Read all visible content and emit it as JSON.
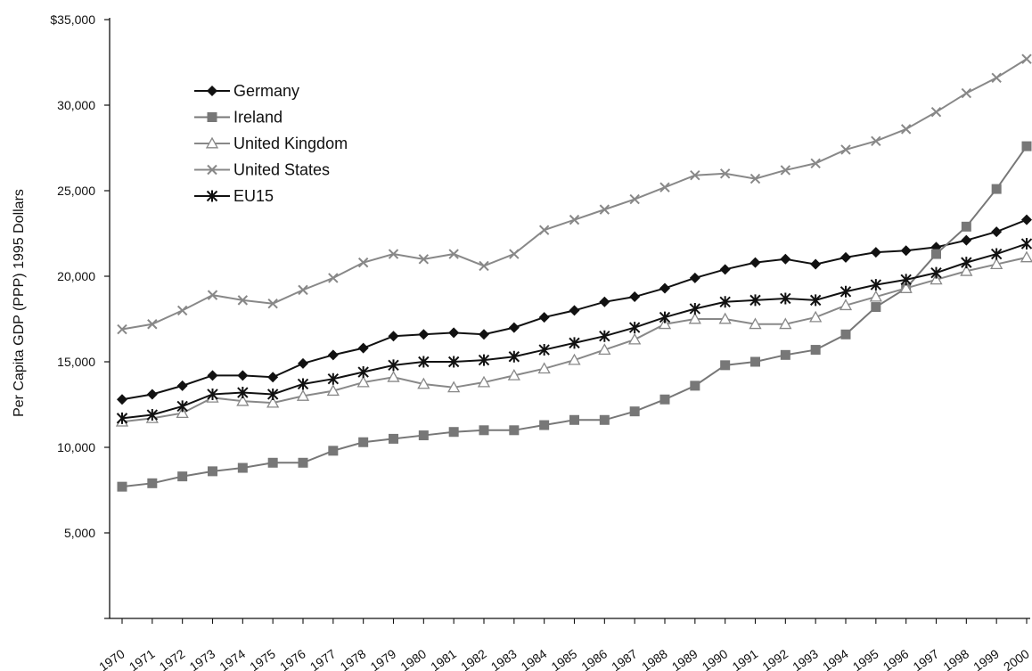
{
  "chart_data": {
    "type": "line",
    "title": "",
    "xlabel": "",
    "ylabel": "Per Capita GDP (PPP) 1995 Dollars",
    "ylim": [
      0,
      35000
    ],
    "y_ticks": [
      "",
      "5,000",
      "10,000",
      "15,000",
      "20,000",
      "25,000",
      "30,000",
      "$35,000"
    ],
    "y_tick_values": [
      0,
      5000,
      10000,
      15000,
      20000,
      25000,
      30000,
      35000
    ],
    "grid": false,
    "legend_position": "top-left",
    "x": [
      "1970",
      "1971",
      "1972",
      "1973",
      "1974",
      "1975",
      "1976",
      "1977",
      "1978",
      "1979",
      "1980",
      "1981",
      "1982",
      "1983",
      "1984",
      "1985",
      "1986",
      "1987",
      "1988",
      "1989",
      "1990",
      "1991",
      "1992",
      "1993",
      "1994",
      "1995",
      "1996",
      "1997",
      "1998",
      "1999",
      "2000"
    ],
    "series": [
      {
        "name": "Germany",
        "marker": "diamond",
        "color": "#111111",
        "values": [
          12800,
          13100,
          13600,
          14200,
          14200,
          14100,
          14900,
          15400,
          15800,
          16500,
          16600,
          16700,
          16600,
          17000,
          17600,
          18000,
          18500,
          18800,
          19300,
          19900,
          20400,
          20800,
          21000,
          20700,
          21100,
          21400,
          21500,
          21700,
          22100,
          22600,
          23300
        ]
      },
      {
        "name": "Ireland",
        "marker": "square",
        "color": "#777777",
        "values": [
          7700,
          7900,
          8300,
          8600,
          8800,
          9100,
          9100,
          9800,
          10300,
          10500,
          10700,
          10900,
          11000,
          11000,
          11300,
          11600,
          11600,
          12100,
          12800,
          13600,
          14800,
          15000,
          15400,
          15700,
          16600,
          18200,
          19300,
          21300,
          22900,
          25100,
          27600
        ]
      },
      {
        "name": "United Kingdom",
        "marker": "triangle",
        "color": "#888888",
        "values": [
          11500,
          11700,
          12000,
          12900,
          12700,
          12600,
          13000,
          13300,
          13800,
          14100,
          13700,
          13500,
          13800,
          14200,
          14600,
          15100,
          15700,
          16300,
          17200,
          17500,
          17500,
          17200,
          17200,
          17600,
          18300,
          18800,
          19300,
          19800,
          20300,
          20700,
          21100
        ]
      },
      {
        "name": "United States",
        "marker": "x",
        "color": "#888888",
        "values": [
          16900,
          17200,
          18000,
          18900,
          18600,
          18400,
          19200,
          19900,
          20800,
          21300,
          21000,
          21300,
          20600,
          21300,
          22700,
          23300,
          23900,
          24500,
          25200,
          25900,
          26000,
          25700,
          26200,
          26600,
          27400,
          27900,
          28600,
          29600,
          30700,
          31600,
          32700
        ]
      },
      {
        "name": "EU15",
        "marker": "star",
        "color": "#111111",
        "values": [
          11700,
          11900,
          12400,
          13100,
          13200,
          13100,
          13700,
          14000,
          14400,
          14800,
          15000,
          15000,
          15100,
          15300,
          15700,
          16100,
          16500,
          17000,
          17600,
          18100,
          18500,
          18600,
          18700,
          18600,
          19100,
          19500,
          19800,
          20200,
          20800,
          21300,
          21900
        ]
      }
    ]
  }
}
